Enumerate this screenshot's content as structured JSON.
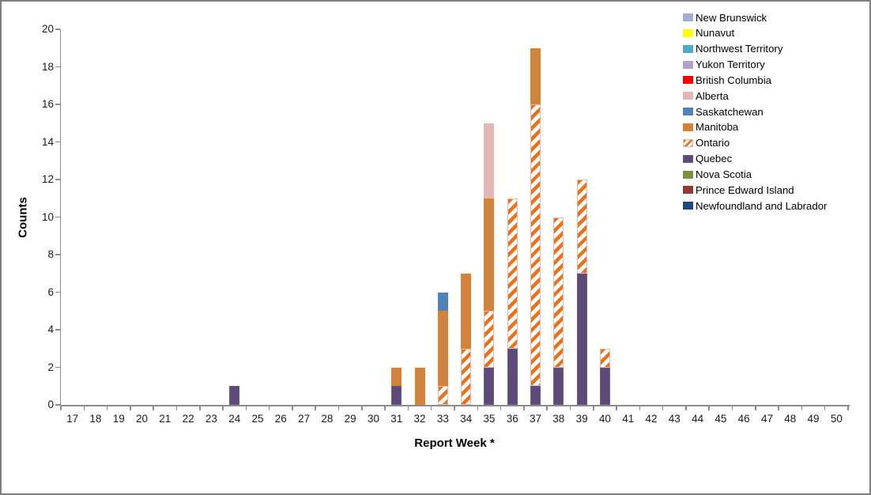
{
  "frame": {
    "background": "#ffffff",
    "border_color": "#7f7f7f"
  },
  "chart_data": {
    "type": "bar",
    "stacked": true,
    "title": "",
    "xlabel": "Report Week *",
    "ylabel": "Counts",
    "x_categories": [
      "17",
      "18",
      "19",
      "20",
      "21",
      "22",
      "23",
      "24",
      "25",
      "26",
      "27",
      "28",
      "29",
      "30",
      "31",
      "32",
      "33",
      "34",
      "35",
      "36",
      "37",
      "38",
      "39",
      "40",
      "41",
      "42",
      "43",
      "44",
      "45",
      "46",
      "47",
      "48",
      "49",
      "50"
    ],
    "ylim": [
      0,
      20
    ],
    "ytick_step": 2,
    "ytick_labels": [
      "0",
      "2",
      "4",
      "6",
      "8",
      "10",
      "12",
      "14",
      "16",
      "18",
      "20"
    ],
    "grid": false,
    "legend_position": "top-right",
    "axis_color": "#8c8c8c",
    "tick_label_color": "#1a1a1a",
    "legend_order": [
      "New Brunswick",
      "Nunavut",
      "Northwest Territory",
      "Yukon Territory",
      "British Columbia",
      "Alberta",
      "Saskatchewan",
      "Manitoba",
      "Ontario",
      "Quebec",
      "Nova Scotia",
      "Prince Edward Island",
      "Newfoundland and Labrador"
    ],
    "provinces": {
      "New Brunswick": {
        "fill": "#a6add3",
        "border": "#a6add3"
      },
      "Nunavut": {
        "fill": "#ffff00",
        "border": "#ffff00"
      },
      "Northwest Territory": {
        "fill": "#4bacc6",
        "border": "#4bacc6"
      },
      "Yukon Territory": {
        "fill": "#b2a2c7",
        "border": "#b2a2c7"
      },
      "British Columbia": {
        "fill": "#ff0000",
        "border": "#ff0000"
      },
      "Alberta": {
        "fill": "#e3b5b4",
        "border": "#e5b8b7"
      },
      "Saskatchewan": {
        "fill": "#4f81bd",
        "border": "#4f81bd"
      },
      "Manitoba": {
        "fill": "#ce8440",
        "border": "#ee7e1e"
      },
      "Ontario": {
        "hatch": true,
        "fill": "#ffffff",
        "stripe": "#e8731c",
        "border": "#e5b8b7"
      },
      "Quebec": {
        "fill": "#5d4a78",
        "border": "#6b5a8e"
      },
      "Nova Scotia": {
        "fill": "#77933c",
        "border": "#77933c"
      },
      "Prince Edward Island": {
        "fill": "#953735",
        "border": "#953735"
      },
      "Newfoundland and Labrador": {
        "fill": "#1f497d",
        "border": "#1f497d"
      }
    },
    "bars": [
      {
        "week": "24",
        "segments": [
          {
            "province": "Quebec",
            "value": 1
          }
        ]
      },
      {
        "week": "31",
        "segments": [
          {
            "province": "Quebec",
            "value": 1
          },
          {
            "province": "Manitoba",
            "value": 1
          }
        ]
      },
      {
        "week": "32",
        "segments": [
          {
            "province": "Manitoba",
            "value": 2
          }
        ]
      },
      {
        "week": "33",
        "segments": [
          {
            "province": "Ontario",
            "value": 1
          },
          {
            "province": "Manitoba",
            "value": 4
          },
          {
            "province": "Saskatchewan",
            "value": 1
          }
        ]
      },
      {
        "week": "34",
        "segments": [
          {
            "province": "Ontario",
            "value": 3
          },
          {
            "province": "Manitoba",
            "value": 4
          }
        ]
      },
      {
        "week": "35",
        "segments": [
          {
            "province": "Quebec",
            "value": 2
          },
          {
            "province": "Ontario",
            "value": 3
          },
          {
            "province": "Manitoba",
            "value": 6
          },
          {
            "province": "Alberta",
            "value": 4
          }
        ]
      },
      {
        "week": "36",
        "segments": [
          {
            "province": "Quebec",
            "value": 3
          },
          {
            "province": "Ontario",
            "value": 8
          }
        ]
      },
      {
        "week": "37",
        "segments": [
          {
            "province": "Quebec",
            "value": 1
          },
          {
            "province": "Ontario",
            "value": 15
          },
          {
            "province": "Manitoba",
            "value": 3
          }
        ]
      },
      {
        "week": "38",
        "segments": [
          {
            "province": "Quebec",
            "value": 2
          },
          {
            "province": "Ontario",
            "value": 8
          }
        ]
      },
      {
        "week": "39",
        "segments": [
          {
            "province": "Quebec",
            "value": 7
          },
          {
            "province": "Ontario",
            "value": 5
          }
        ]
      },
      {
        "week": "40",
        "segments": [
          {
            "province": "Quebec",
            "value": 2
          },
          {
            "province": "Ontario",
            "value": 1
          }
        ]
      }
    ]
  }
}
